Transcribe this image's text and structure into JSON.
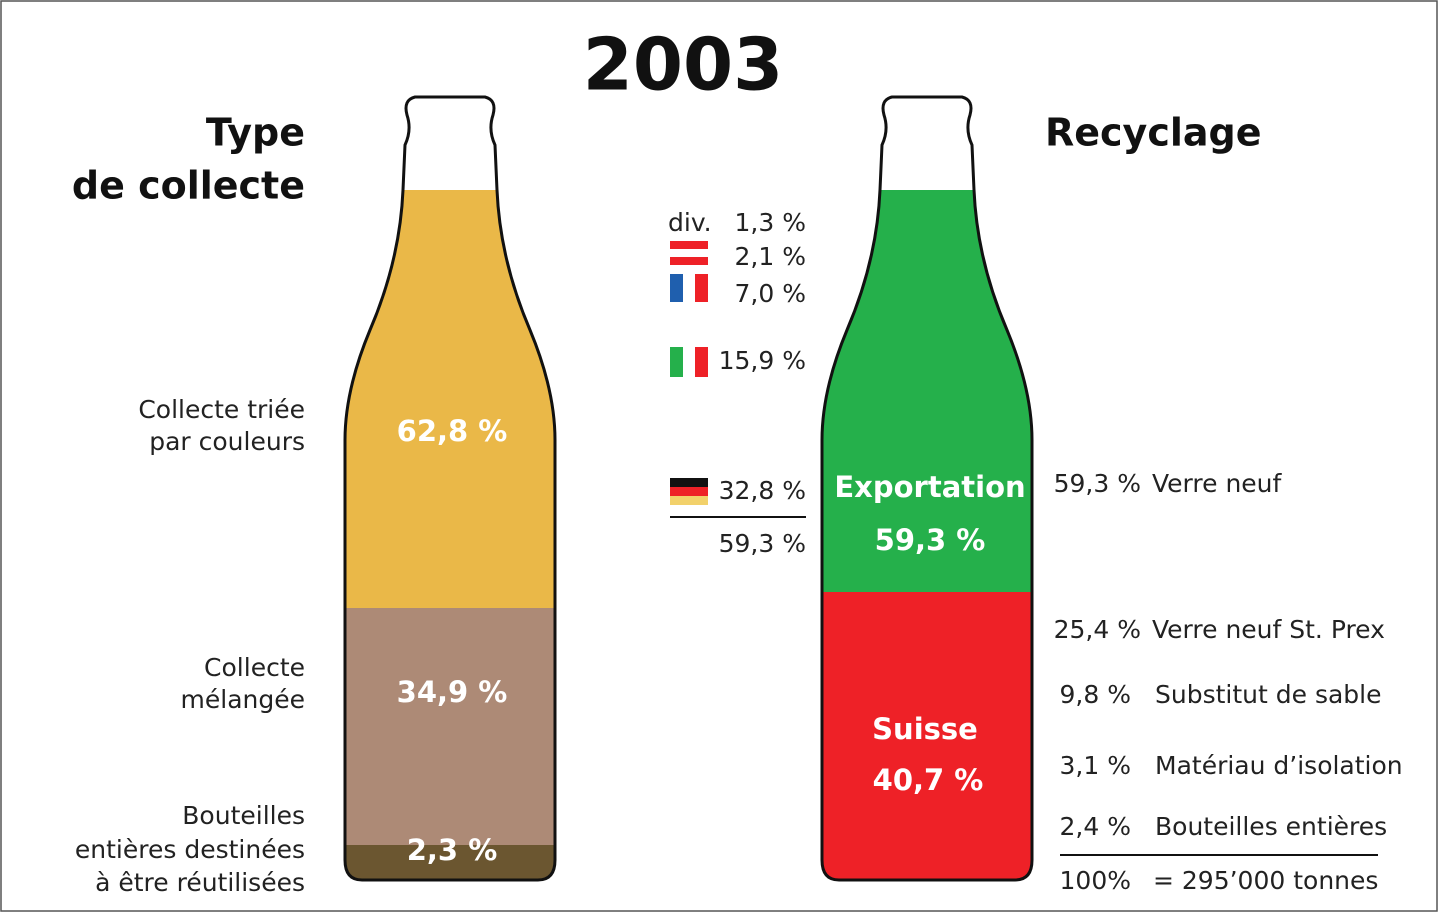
{
  "title": "2003",
  "collection": {
    "heading": [
      "Type",
      "de collecte"
    ],
    "segments": [
      {
        "label": [
          "Collecte triée",
          "par couleurs"
        ],
        "value": "62,8 %"
      },
      {
        "label": [
          "Collecte",
          "mélangée"
        ],
        "value": "34,9 %"
      },
      {
        "label": [
          "Bouteilles",
          "entières destinées",
          "à être réutilisées"
        ],
        "value": "2,3 %"
      }
    ]
  },
  "export": {
    "div_label": "div.",
    "countries": [
      "1,3 %",
      "2,1 %",
      "7,0 %",
      "15,9 %",
      "32,8 %"
    ],
    "total": "59,3 %"
  },
  "recycling": {
    "heading": "Recyclage",
    "segments": [
      {
        "label": "Exportation",
        "value": "59,3 %"
      },
      {
        "label": "Suisse",
        "value": "40,7 %"
      }
    ],
    "uses": [
      {
        "value": "59,3 %",
        "label": "Verre neuf"
      },
      {
        "value": "25,4 %",
        "label": "Verre neuf St. Prex"
      },
      {
        "value": "9,8 %",
        "label": "Substitut de sable"
      },
      {
        "value": "3,1 %",
        "label": "Matériau d’isolation"
      },
      {
        "value": "2,4 %",
        "label": "Bouteilles entières"
      }
    ],
    "total": {
      "value": "100%",
      "label": "= 295’000 tonnes"
    }
  }
}
